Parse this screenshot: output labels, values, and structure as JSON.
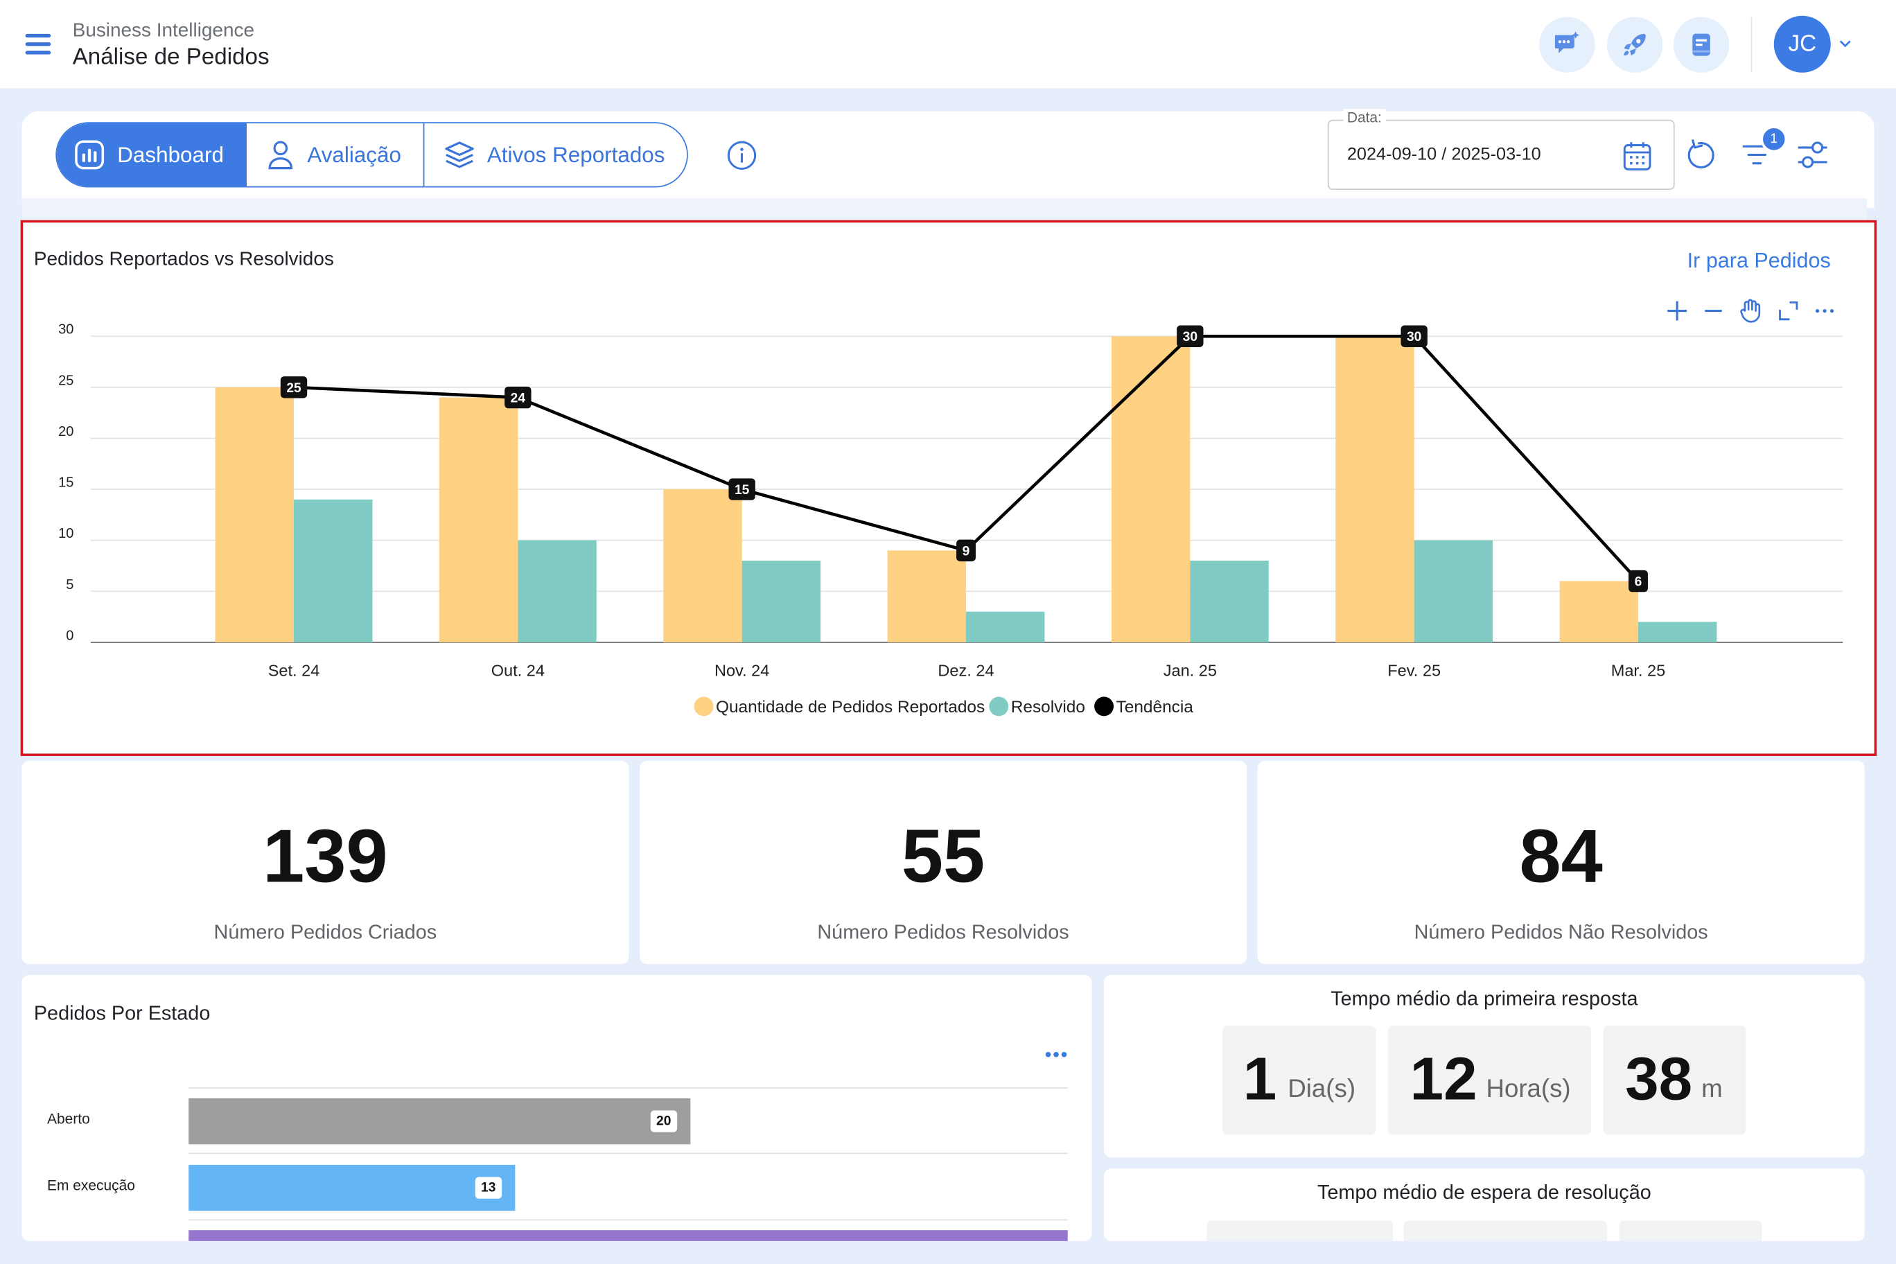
{
  "header": {
    "subtitle": "Business Intelligence",
    "title": "Análise de Pedidos",
    "icons": [
      "chat-sparkle-icon",
      "rocket-icon",
      "notes-icon"
    ],
    "user_initials": "JC"
  },
  "tabs": [
    {
      "label": "Dashboard",
      "icon": "chart-icon",
      "active": true
    },
    {
      "label": "Avaliação",
      "icon": "user-icon",
      "active": false
    },
    {
      "label": "Ativos Reportados",
      "icon": "layers-icon",
      "active": false
    }
  ],
  "filters": {
    "date_label": "Data:",
    "date_value": "2024-09-10 / 2025-03-10",
    "filter_badge": "1"
  },
  "colors": {
    "accent": "#3d7be2",
    "reported": "#fed183",
    "resolved": "#80cbc4",
    "trend": "#000000",
    "highlight_border": "#d6141e"
  },
  "chart": {
    "title": "Pedidos Reportados vs Resolvidos",
    "link": "Ir para Pedidos"
  },
  "chart_data": {
    "type": "bar",
    "categories": [
      "Set. 24",
      "Out. 24",
      "Nov. 24",
      "Dez. 24",
      "Jan. 25",
      "Fev. 25",
      "Mar. 25"
    ],
    "series": [
      {
        "name": "Quantidade de Pedidos Reportados",
        "type": "bar",
        "values": [
          25,
          24,
          15,
          9,
          30,
          30,
          6
        ]
      },
      {
        "name": "Resolvido",
        "type": "bar",
        "values": [
          14,
          10,
          8,
          3,
          8,
          10,
          2
        ]
      },
      {
        "name": "Tendência",
        "type": "line",
        "values": [
          25,
          24,
          15,
          9,
          30,
          30,
          6
        ]
      }
    ],
    "ylim": [
      0,
      30
    ],
    "yticks": [
      0,
      5,
      10,
      15,
      20,
      25,
      30
    ],
    "grid": true,
    "legend": "bottom"
  },
  "stats": [
    {
      "value": "139",
      "label": "Número Pedidos Criados"
    },
    {
      "value": "55",
      "label": "Número Pedidos Resolvidos"
    },
    {
      "value": "84",
      "label": "Número Pedidos Não Resolvidos"
    }
  ],
  "states": {
    "title": "Pedidos Por Estado",
    "items": [
      {
        "label": "Aberto",
        "value": 20,
        "display": "20",
        "color": "#9e9e9e"
      },
      {
        "label": "Em execução",
        "value": 13,
        "display": "13",
        "color": "#64b5f6"
      },
      {
        "label": "",
        "value": 35,
        "display": "",
        "color": "#9575cd"
      }
    ],
    "max": 35
  },
  "first_response": {
    "title": "Tempo médio da primeira resposta",
    "parts": [
      {
        "num": "1",
        "unit": "Dia(s)"
      },
      {
        "num": "12",
        "unit": "Hora(s)"
      },
      {
        "num": "38",
        "unit": "m"
      }
    ]
  },
  "resolution_wait": {
    "title": "Tempo médio de espera de resolução"
  }
}
